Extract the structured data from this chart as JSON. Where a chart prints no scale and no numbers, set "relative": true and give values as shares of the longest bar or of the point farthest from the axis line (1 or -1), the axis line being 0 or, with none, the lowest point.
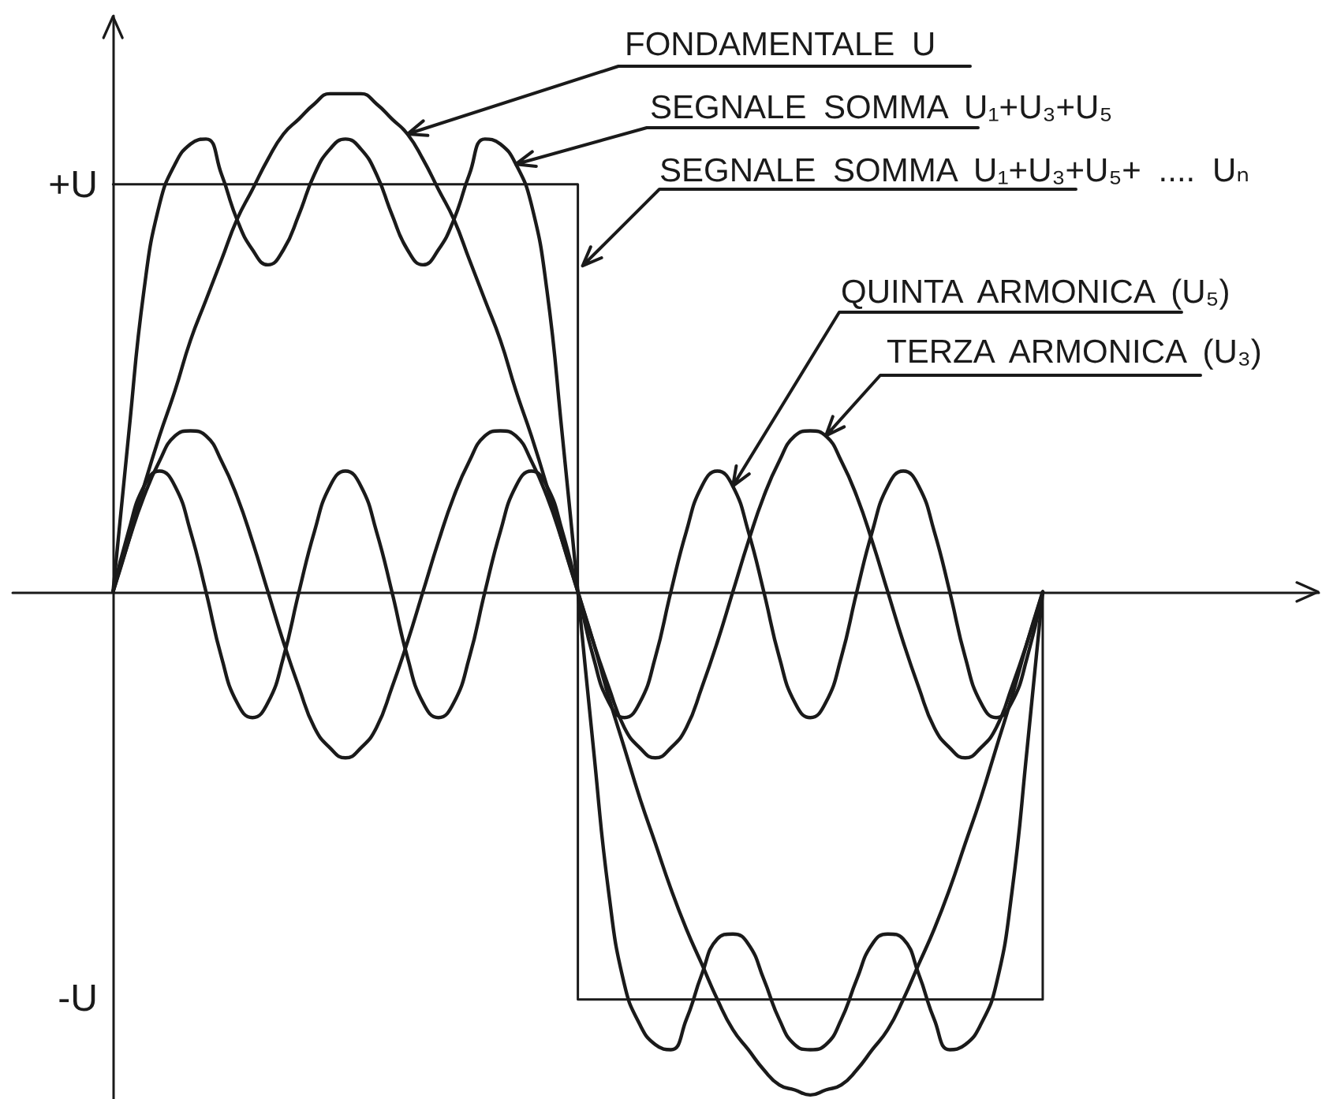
{
  "chart_data": {
    "type": "line",
    "relative": true,
    "categories": [
      null,
      null,
      null,
      null,
      null,
      null,
      null,
      null,
      null,
      null,
      null,
      null,
      null,
      null,
      null,
      null,
      null,
      null,
      null,
      null,
      null,
      null,
      null,
      null,
      null,
      null,
      null,
      null,
      null,
      null,
      null,
      null,
      null,
      null,
      null,
      null,
      null,
      null,
      null,
      null,
      null,
      null,
      null,
      null,
      null,
      null,
      null,
      null,
      null,
      null,
      null,
      null,
      null,
      null,
      null,
      null,
      null,
      null,
      null,
      null,
      null
    ],
    "annotations": [
      "+U",
      "-U"
    ],
    "marker": "none",
    "line_style": "solid",
    "series": [
      {
        "name": "FONDAMENTALE U",
        "color": "#1a1a1a",
        "values": [
          0,
          0.1,
          0.21,
          0.31,
          0.4,
          0.5,
          0.58,
          0.66,
          0.74,
          0.8,
          0.86,
          0.91,
          0.94,
          0.97,
          0.99,
          0.99,
          0.99,
          0.97,
          0.94,
          0.91,
          0.86,
          0.8,
          0.74,
          0.66,
          0.58,
          0.5,
          0.4,
          0.31,
          0.21,
          0.1,
          0,
          -0.1,
          -0.21,
          -0.31,
          -0.41,
          -0.5,
          -0.59,
          -0.67,
          -0.74,
          -0.81,
          -0.87,
          -0.91,
          -0.95,
          -0.98,
          -0.99,
          -1,
          -0.99,
          -0.98,
          -0.95,
          -0.91,
          -0.87,
          -0.81,
          -0.74,
          -0.67,
          -0.59,
          -0.5,
          -0.41,
          -0.31,
          -0.21,
          -0.1,
          0
        ]
      },
      {
        "name": "SEGNALE SOMMA U₁+U₃+U₅",
        "color": "#1a1a1a",
        "values": [
          0,
          0.31,
          0.6,
          0.77,
          0.85,
          0.89,
          0.9,
          0.83,
          0.74,
          0.68,
          0.65,
          0.68,
          0.75,
          0.83,
          0.88,
          0.9,
          0.88,
          0.83,
          0.75,
          0.68,
          0.65,
          0.68,
          0.74,
          0.83,
          0.9,
          0.89,
          0.85,
          0.77,
          0.6,
          0.31,
          0,
          -0.31,
          -0.6,
          -0.78,
          -0.86,
          -0.9,
          -0.91,
          -0.85,
          -0.76,
          -0.69,
          -0.68,
          -0.7,
          -0.77,
          -0.85,
          -0.9,
          -0.91,
          -0.9,
          -0.85,
          -0.77,
          -0.7,
          -0.68,
          -0.69,
          -0.76,
          -0.85,
          -0.91,
          -0.9,
          -0.86,
          -0.78,
          -0.6,
          -0.31,
          0
        ]
      },
      {
        "name": "SEGNALE SOMMA U₁+U₃+U₅+ .... Uₙ",
        "type": "step",
        "color": "#1a1a1a",
        "values": [
          0.81,
          0.81,
          0.81,
          0.81,
          0.81,
          0.81,
          0.81,
          0.81,
          0.81,
          0.81,
          0.81,
          0.81,
          0.81,
          0.81,
          0.81,
          0.81,
          0.81,
          0.81,
          0.81,
          0.81,
          0.81,
          0.81,
          0.81,
          0.81,
          0.81,
          0.81,
          0.81,
          0.81,
          0.81,
          0.81,
          -0.81,
          -0.81,
          -0.81,
          -0.81,
          -0.81,
          -0.81,
          -0.81,
          -0.81,
          -0.81,
          -0.81,
          -0.81,
          -0.81,
          -0.81,
          -0.81,
          -0.81,
          -0.81,
          -0.81,
          -0.81,
          -0.81,
          -0.81,
          -0.81,
          -0.81,
          -0.81,
          -0.81,
          -0.81,
          -0.81,
          -0.81,
          -0.81,
          -0.81,
          -0.81,
          0
        ]
      },
      {
        "name": "QUINTA ARMONICA (U₅)",
        "color": "#1a1a1a",
        "values": [
          0,
          0.12,
          0.21,
          0.24,
          0.21,
          0.12,
          0,
          -0.13,
          -0.22,
          -0.25,
          -0.22,
          -0.13,
          0,
          0.12,
          0.21,
          0.24,
          0.21,
          0.12,
          0,
          -0.13,
          -0.22,
          -0.25,
          -0.22,
          -0.13,
          0,
          0.12,
          0.21,
          0.24,
          0.21,
          0.12,
          0,
          -0.13,
          -0.22,
          -0.25,
          -0.22,
          -0.13,
          0,
          0.12,
          0.21,
          0.24,
          0.21,
          0.12,
          0,
          -0.13,
          -0.22,
          -0.25,
          -0.22,
          -0.13,
          0,
          0.12,
          0.21,
          0.24,
          0.21,
          0.12,
          0,
          -0.13,
          -0.22,
          -0.25,
          -0.22,
          -0.13,
          0
        ]
      },
      {
        "name": "TERZA ARMONICA (U₃)",
        "color": "#1a1a1a",
        "values": [
          0,
          0.1,
          0.19,
          0.26,
          0.31,
          0.32,
          0.31,
          0.26,
          0.19,
          0.1,
          0,
          -0.1,
          -0.19,
          -0.27,
          -0.31,
          -0.33,
          -0.31,
          -0.27,
          -0.19,
          -0.1,
          0,
          0.1,
          0.19,
          0.26,
          0.31,
          0.32,
          0.31,
          0.26,
          0.19,
          0.1,
          0,
          -0.1,
          -0.19,
          -0.27,
          -0.31,
          -0.33,
          -0.31,
          -0.27,
          -0.19,
          -0.1,
          0,
          0.1,
          0.19,
          0.26,
          0.31,
          0.32,
          0.31,
          0.26,
          0.19,
          0.1,
          0,
          -0.1,
          -0.19,
          -0.27,
          -0.31,
          -0.33,
          -0.31,
          -0.27,
          -0.19,
          -0.1,
          0
        ]
      }
    ]
  }
}
